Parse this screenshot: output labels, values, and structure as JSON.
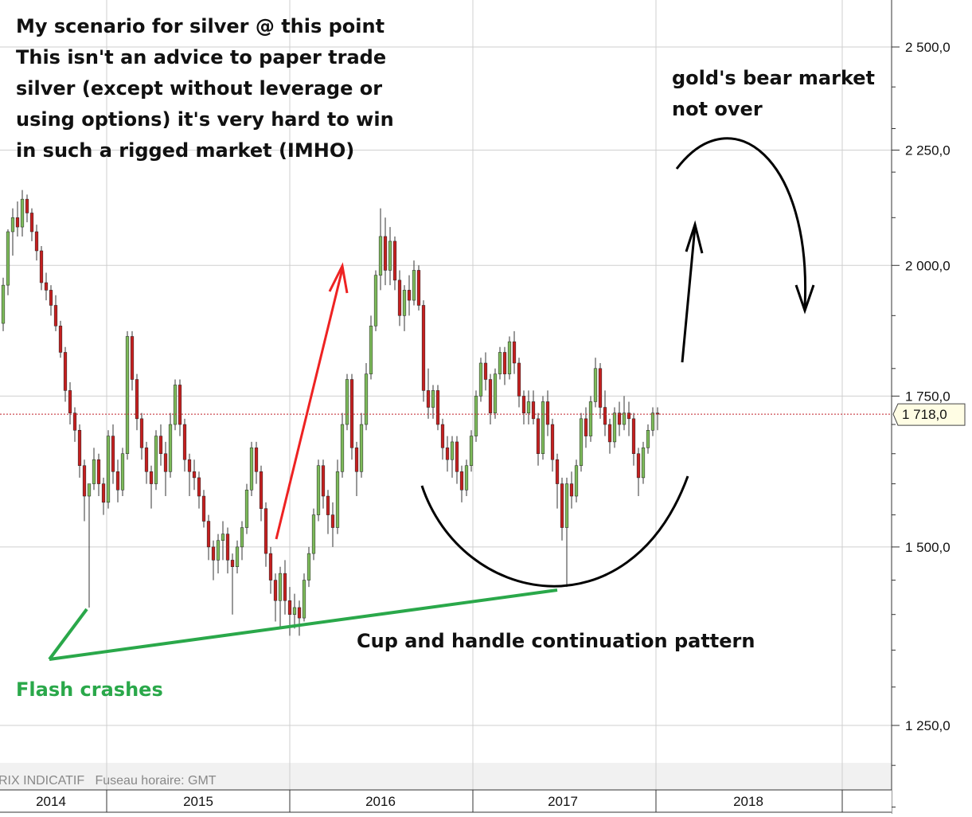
{
  "chart_data": {
    "type": "candlestick",
    "x_axis": {
      "labels": [
        "2014",
        "2015",
        "2016",
        "2017",
        "2018"
      ]
    },
    "y_axis": {
      "ticks": [
        "2 500,0",
        "2 250,0",
        "2 000,0",
        "1 750,0",
        "1 500,0",
        "1 250,0"
      ],
      "tick_values": [
        2500,
        2250,
        2000,
        1750,
        1500,
        1250
      ],
      "scale": "log",
      "range": [
        1130,
        2620
      ],
      "position": "right"
    },
    "last_price": {
      "value": 1718,
      "label": "1 718,0"
    },
    "footer_text": "RIX INDICATIF   Fuseau horaire: GMT",
    "grid": true,
    "series": [
      {
        "values": [
          [
            1885,
            1975,
            1870,
            1960
          ],
          [
            1960,
            2075,
            1940,
            2070
          ],
          [
            2070,
            2120,
            2020,
            2100
          ],
          [
            2100,
            2135,
            2060,
            2080
          ],
          [
            2080,
            2160,
            2060,
            2140
          ],
          [
            2140,
            2150,
            2090,
            2110
          ],
          [
            2110,
            2120,
            2050,
            2070
          ],
          [
            2070,
            2085,
            2010,
            2030
          ],
          [
            2030,
            2040,
            1950,
            1965
          ],
          [
            1965,
            1985,
            1930,
            1950
          ],
          [
            1950,
            1960,
            1900,
            1920
          ],
          [
            1920,
            1940,
            1870,
            1880
          ],
          [
            1880,
            1890,
            1820,
            1830
          ],
          [
            1830,
            1840,
            1740,
            1760
          ],
          [
            1760,
            1775,
            1700,
            1720
          ],
          [
            1720,
            1730,
            1670,
            1690
          ],
          [
            1690,
            1700,
            1610,
            1630
          ],
          [
            1630,
            1640,
            1540,
            1580
          ],
          [
            1580,
            1590,
            1410,
            1600
          ],
          [
            1600,
            1660,
            1590,
            1640
          ],
          [
            1640,
            1650,
            1580,
            1600
          ],
          [
            1600,
            1610,
            1550,
            1570
          ],
          [
            1570,
            1690,
            1560,
            1680
          ],
          [
            1680,
            1700,
            1600,
            1620
          ],
          [
            1620,
            1640,
            1570,
            1590
          ],
          [
            1590,
            1660,
            1580,
            1650
          ],
          [
            1650,
            1870,
            1640,
            1860
          ],
          [
            1860,
            1870,
            1760,
            1780
          ],
          [
            1780,
            1790,
            1690,
            1710
          ],
          [
            1710,
            1720,
            1640,
            1660
          ],
          [
            1660,
            1670,
            1600,
            1620
          ],
          [
            1620,
            1630,
            1560,
            1600
          ],
          [
            1600,
            1690,
            1590,
            1680
          ],
          [
            1680,
            1700,
            1630,
            1650
          ],
          [
            1650,
            1670,
            1580,
            1620
          ],
          [
            1620,
            1720,
            1610,
            1700
          ],
          [
            1700,
            1780,
            1690,
            1770
          ],
          [
            1770,
            1780,
            1680,
            1700
          ],
          [
            1700,
            1710,
            1620,
            1640
          ],
          [
            1640,
            1650,
            1580,
            1620
          ],
          [
            1620,
            1640,
            1590,
            1610
          ],
          [
            1610,
            1620,
            1560,
            1580
          ],
          [
            1580,
            1590,
            1530,
            1540
          ],
          [
            1540,
            1550,
            1480,
            1500
          ],
          [
            1500,
            1510,
            1450,
            1480
          ],
          [
            1480,
            1520,
            1460,
            1510
          ],
          [
            1510,
            1540,
            1480,
            1520
          ],
          [
            1520,
            1530,
            1460,
            1480
          ],
          [
            1480,
            1490,
            1400,
            1470
          ],
          [
            1470,
            1510,
            1460,
            1500
          ],
          [
            1500,
            1540,
            1480,
            1530
          ],
          [
            1530,
            1600,
            1520,
            1590
          ],
          [
            1590,
            1670,
            1580,
            1660
          ],
          [
            1660,
            1670,
            1600,
            1620
          ],
          [
            1620,
            1630,
            1540,
            1560
          ],
          [
            1560,
            1570,
            1470,
            1490
          ],
          [
            1490,
            1500,
            1430,
            1450
          ],
          [
            1450,
            1460,
            1390,
            1420
          ],
          [
            1420,
            1470,
            1380,
            1460
          ],
          [
            1460,
            1480,
            1400,
            1420
          ],
          [
            1420,
            1440,
            1370,
            1400
          ],
          [
            1400,
            1430,
            1380,
            1410
          ],
          [
            1410,
            1420,
            1370,
            1395
          ],
          [
            1395,
            1460,
            1390,
            1450
          ],
          [
            1450,
            1500,
            1440,
            1490
          ],
          [
            1490,
            1560,
            1480,
            1550
          ],
          [
            1550,
            1640,
            1540,
            1630
          ],
          [
            1630,
            1640,
            1560,
            1580
          ],
          [
            1580,
            1590,
            1520,
            1550
          ],
          [
            1550,
            1570,
            1500,
            1530
          ],
          [
            1530,
            1640,
            1520,
            1620
          ],
          [
            1620,
            1720,
            1610,
            1700
          ],
          [
            1700,
            1790,
            1690,
            1780
          ],
          [
            1780,
            1790,
            1640,
            1660
          ],
          [
            1660,
            1670,
            1580,
            1620
          ],
          [
            1620,
            1720,
            1610,
            1700
          ],
          [
            1700,
            1810,
            1690,
            1790
          ],
          [
            1790,
            1900,
            1780,
            1880
          ],
          [
            1880,
            1990,
            1870,
            1980
          ],
          [
            1980,
            2120,
            1950,
            2060
          ],
          [
            2060,
            2100,
            1960,
            1990
          ],
          [
            1990,
            2080,
            1960,
            2050
          ],
          [
            2050,
            2060,
            1950,
            1970
          ],
          [
            1970,
            1990,
            1880,
            1900
          ],
          [
            1900,
            1960,
            1870,
            1950
          ],
          [
            1950,
            1980,
            1900,
            1930
          ],
          [
            1930,
            2010,
            1920,
            1990
          ],
          [
            1990,
            2000,
            1910,
            1920
          ],
          [
            1920,
            1930,
            1740,
            1760
          ],
          [
            1760,
            1800,
            1710,
            1730
          ],
          [
            1730,
            1770,
            1710,
            1760
          ],
          [
            1760,
            1770,
            1690,
            1700
          ],
          [
            1700,
            1710,
            1640,
            1660
          ],
          [
            1660,
            1680,
            1620,
            1640
          ],
          [
            1640,
            1680,
            1610,
            1670
          ],
          [
            1670,
            1680,
            1600,
            1620
          ],
          [
            1620,
            1630,
            1570,
            1590
          ],
          [
            1590,
            1640,
            1580,
            1630
          ],
          [
            1630,
            1690,
            1620,
            1680
          ],
          [
            1680,
            1760,
            1670,
            1750
          ],
          [
            1750,
            1820,
            1740,
            1810
          ],
          [
            1810,
            1830,
            1760,
            1780
          ],
          [
            1780,
            1790,
            1700,
            1720
          ],
          [
            1720,
            1800,
            1710,
            1790
          ],
          [
            1790,
            1840,
            1780,
            1830
          ],
          [
            1830,
            1840,
            1770,
            1790
          ],
          [
            1790,
            1860,
            1780,
            1850
          ],
          [
            1850,
            1870,
            1790,
            1810
          ],
          [
            1810,
            1820,
            1730,
            1750
          ],
          [
            1750,
            1760,
            1700,
            1720
          ],
          [
            1720,
            1760,
            1700,
            1740
          ],
          [
            1740,
            1760,
            1700,
            1710
          ],
          [
            1710,
            1720,
            1630,
            1650
          ],
          [
            1650,
            1750,
            1640,
            1740
          ],
          [
            1740,
            1760,
            1680,
            1700
          ],
          [
            1700,
            1710,
            1620,
            1640
          ],
          [
            1640,
            1650,
            1560,
            1600
          ],
          [
            1600,
            1610,
            1510,
            1530
          ],
          [
            1530,
            1610,
            1440,
            1600
          ],
          [
            1600,
            1620,
            1560,
            1580
          ],
          [
            1580,
            1640,
            1570,
            1630
          ],
          [
            1630,
            1720,
            1620,
            1710
          ],
          [
            1710,
            1730,
            1660,
            1680
          ],
          [
            1680,
            1750,
            1670,
            1740
          ],
          [
            1740,
            1820,
            1730,
            1800
          ],
          [
            1800,
            1810,
            1710,
            1730
          ],
          [
            1730,
            1760,
            1680,
            1700
          ],
          [
            1700,
            1710,
            1650,
            1670
          ],
          [
            1670,
            1730,
            1660,
            1720
          ],
          [
            1720,
            1740,
            1680,
            1700
          ],
          [
            1700,
            1750,
            1690,
            1720
          ],
          [
            1720,
            1740,
            1680,
            1710
          ],
          [
            1710,
            1720,
            1630,
            1650
          ],
          [
            1650,
            1660,
            1580,
            1610
          ],
          [
            1610,
            1670,
            1600,
            1660
          ],
          [
            1660,
            1700,
            1650,
            1690
          ],
          [
            1690,
            1730,
            1680,
            1720
          ],
          [
            1720,
            1730,
            1690,
            1718
          ]
        ]
      }
    ],
    "annotations": [
      "My scenario for silver @ this point\nThis isn't an advice to paper trade\nsilver (except without leverage or\nusing options) it's very hard to win\nin such a rigged market (IMHO)",
      "gold's bear market\nnot over",
      "Cup and handle continuation pattern",
      "Flash crashes"
    ]
  },
  "colors": {
    "up_candle": "#7dbb5a",
    "down_candle": "#c51f1f",
    "wick": "#333333",
    "grid": "#cfcfcf",
    "last_price_line": "#c0202a",
    "price_tag_bg": "#fffde4",
    "annotation_green": "#2aa84a",
    "annotation_red": "#ee2222",
    "annotation_black": "#000000"
  }
}
